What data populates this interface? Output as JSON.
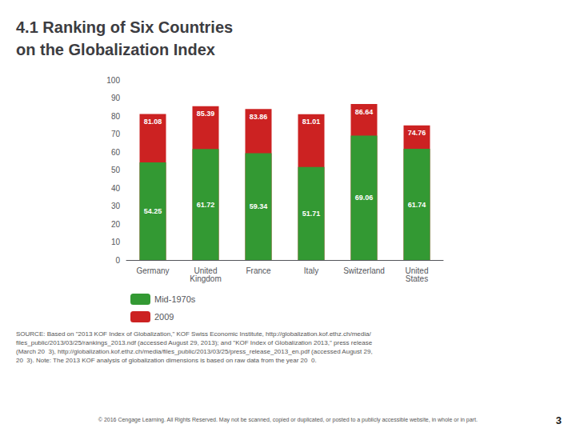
{
  "chart_data": {
    "type": "bar",
    "title": "4.1 Ranking of Six Countries\non the Globalization Index",
    "categories": [
      "Germany",
      "United\nKingdom",
      "France",
      "Italy",
      "Switzerland",
      "United\nStates"
    ],
    "series": [
      {
        "name": "Mid-1970s",
        "color": "#339933",
        "values": [
          54.25,
          61.72,
          59.34,
          51.71,
          69.06,
          61.74
        ]
      },
      {
        "name": "2009",
        "color": "#CC2222",
        "values": [
          81.08,
          85.39,
          83.86,
          81.01,
          86.64,
          74.76
        ]
      }
    ],
    "ylim": [
      0,
      100
    ],
    "yticks": [
      0,
      10,
      20,
      30,
      40,
      50,
      60,
      70,
      80,
      90,
      100
    ],
    "grid": false,
    "legend": "lower left",
    "data_labels": true,
    "annotations": [
      "SOURCE: Based on \"2013 KOF Index of Globalization,\" KOF Swiss Economic Institute, http://globalization.kof.ethz.ch/media/\nfiles_public/2013/03/25/rankings_2013.ndf (accessed August 29, 2013); and \"KOF Index of Globalization 2013,\" press release\n(March 20  3), http://globalization.kof.ethz.ch/media/files_public/2013/03/25/press_release_2013_en.pdf (accessed August 29,\n20  3). Note: The 2013 KOF analysis of globalization dimensions is based on raw data from the year 20  0.",
      "© 2016 Cengage Learning. All Rights Reserved. May not be scanned, copied or duplicated, or posted to a publicly accessible website, in whole or in part.",
      "3"
    ]
  }
}
